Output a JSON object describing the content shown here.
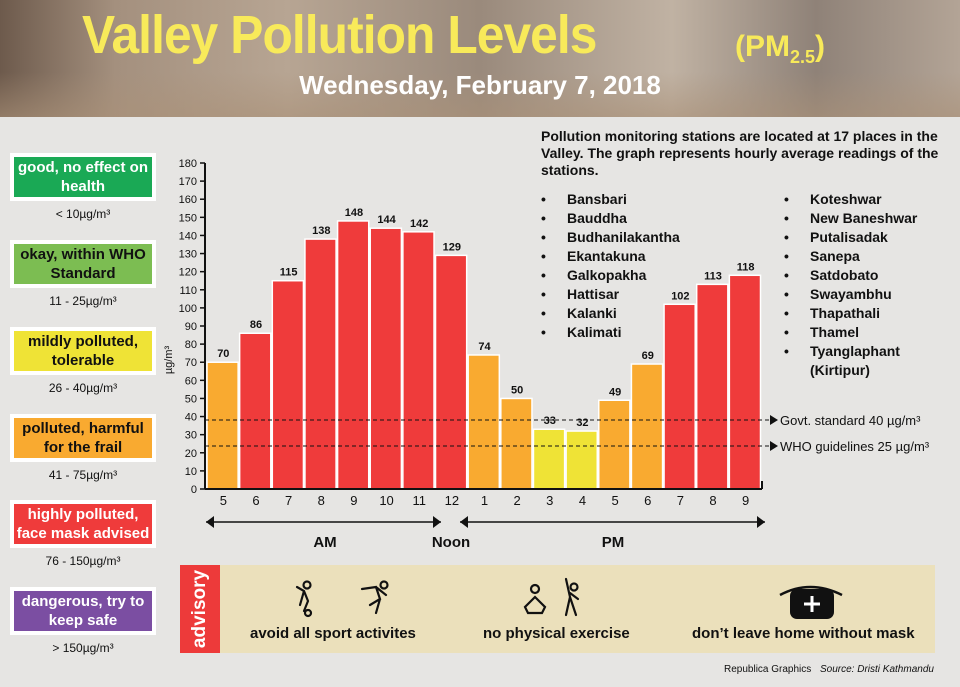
{
  "header": {
    "title": "Valley Pollution Levels",
    "pm_label": "(PM",
    "pm_sub": "2.5",
    "pm_close": ")",
    "date": "Wednesday, February 7, 2018"
  },
  "legend": [
    {
      "label": "good, no effect on health",
      "range": "< 10µg/m³",
      "color": "#1aa955"
    },
    {
      "label": "okay, within WHO Standard",
      "range": "11 - 25µg/m³",
      "color": "#7cbd52"
    },
    {
      "label": "mildly polluted, tolerable",
      "range": "26 - 40µg/m³",
      "color": "#efe336"
    },
    {
      "label": "polluted, harmful for the frail",
      "range": "41 - 75µg/m³",
      "color": "#f9aa30"
    },
    {
      "label": "highly polluted, face mask advised",
      "range": "76 - 150µg/m³",
      "color": "#ef3b3b"
    },
    {
      "label": "dangerous, try to keep safe",
      "range": "> 150µg/m³",
      "color": "#7b4ea2"
    }
  ],
  "intro": "Pollution monitoring stations are located at 17 places in the Valley. The graph represents hourly average readings of the stations.",
  "stations_col1": [
    "Bansbari",
    "Bauddha",
    "Budhanilakantha",
    "Ekantakuna",
    "Galkopakha",
    "Hattisar",
    "Kalanki",
    "Kalimati"
  ],
  "stations_col2": [
    "Koteshwar",
    "New Baneshwar",
    "Putalisadak",
    "Sanepa",
    "Satdobato",
    "Swayambhu",
    "Thapathali",
    "Thamel",
    "Tyanglaphant",
    "(Kirtipur)"
  ],
  "chart_data": {
    "type": "bar",
    "title": "",
    "ylabel": "µg/m³",
    "xlabel": "",
    "ylim": [
      0,
      180
    ],
    "yticks": [
      0,
      10,
      20,
      30,
      40,
      50,
      60,
      70,
      80,
      90,
      100,
      110,
      120,
      130,
      140,
      150,
      160,
      170,
      180
    ],
    "categories": [
      "5",
      "6",
      "7",
      "8",
      "9",
      "10",
      "11",
      "12",
      "1",
      "2",
      "3",
      "4",
      "5",
      "6",
      "7",
      "8",
      "9"
    ],
    "values": [
      70,
      86,
      115,
      138,
      148,
      144,
      142,
      129,
      74,
      50,
      33,
      32,
      49,
      69,
      102,
      113,
      118
    ],
    "color_bands": [
      {
        "max": 40,
        "color": "#efe336"
      },
      {
        "max": 75,
        "color": "#f9aa30"
      },
      {
        "max": 150,
        "color": "#ef3b3b"
      }
    ],
    "reference_lines": [
      {
        "value": 40,
        "label": "Govt. standard 40 µg/m³"
      },
      {
        "value": 25,
        "label": "WHO guidelines 25 µg/m³"
      }
    ],
    "periods": {
      "am": "AM",
      "noon": "Noon",
      "pm": "PM"
    },
    "grid": false,
    "data_labels": true
  },
  "advisory": {
    "tag": "advisory",
    "items": [
      {
        "label": "avoid all sport activites",
        "icons": [
          "football-player-icon",
          "sprinter-icon"
        ]
      },
      {
        "label": "no physical exercise",
        "icons": [
          "meditation-icon",
          "stretching-icon"
        ]
      },
      {
        "label": "don’t leave home without mask",
        "icons": [
          "face-mask-icon"
        ]
      }
    ]
  },
  "footer": {
    "credit": "Republica Graphics",
    "source": "Source: Dristi Kathmandu"
  }
}
